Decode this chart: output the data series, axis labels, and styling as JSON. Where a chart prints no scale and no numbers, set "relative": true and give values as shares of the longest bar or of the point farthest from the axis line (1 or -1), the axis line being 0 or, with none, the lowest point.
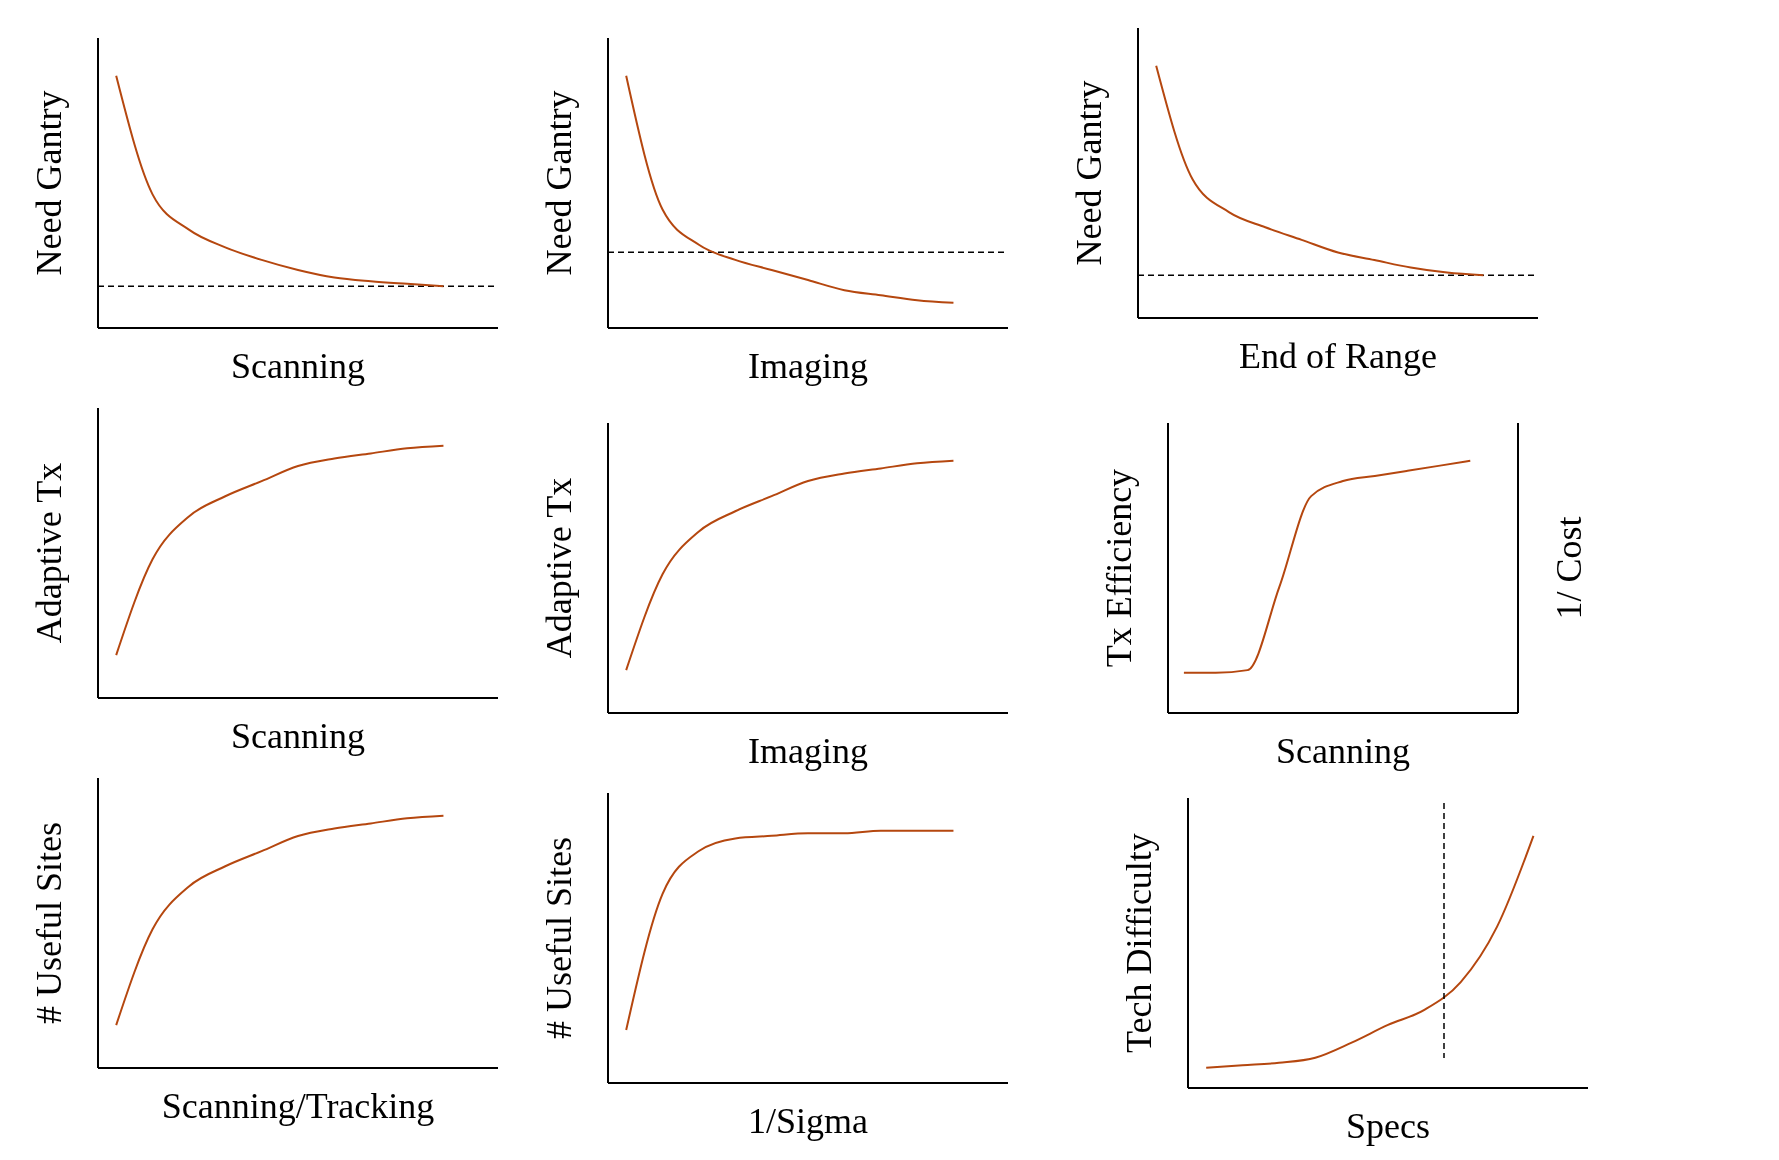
{
  "chart_data": [
    {
      "type": "line",
      "relative": true,
      "ylabel": "Need Gantry",
      "xlabel": "Scanning",
      "categories": [
        null,
        null,
        null,
        null,
        null,
        null,
        null,
        null,
        null,
        null,
        null
      ],
      "series": [
        {
          "color": "#b5470f",
          "values": [
            1,
            0.53,
            0.39,
            0.32,
            0.27,
            0.23,
            0.2,
            0.185,
            0.175,
            0.166,
            null
          ]
        }
      ],
      "ref_lines": [
        {
          "axis": "y",
          "value": 0.166,
          "line_style": "dashed",
          "color": "#000000"
        }
      ]
    },
    {
      "type": "line",
      "relative": true,
      "ylabel": "Need Gantry",
      "xlabel": "Imaging",
      "categories": [
        null,
        null,
        null,
        null,
        null,
        null,
        null,
        null,
        null,
        null,
        null
      ],
      "series": [
        {
          "color": "#b5470f",
          "values": [
            1,
            0.47,
            0.33,
            0.27,
            0.23,
            0.19,
            0.15,
            0.13,
            0.11,
            0.1,
            null
          ]
        }
      ],
      "ref_lines": [
        {
          "axis": "y",
          "value": 0.3,
          "line_style": "dashed",
          "color": "#000000"
        }
      ]
    },
    {
      "type": "line",
      "relative": true,
      "ylabel": "Need Gantry",
      "xlabel": "End of Range",
      "categories": [
        null,
        null,
        null,
        null,
        null,
        null,
        null,
        null,
        null,
        null,
        null
      ],
      "series": [
        {
          "color": "#b5470f",
          "values": [
            1,
            0.55,
            0.42,
            0.36,
            0.31,
            0.26,
            0.23,
            0.2,
            0.18,
            0.17,
            null
          ]
        }
      ],
      "ref_lines": [
        {
          "axis": "y",
          "value": 0.17,
          "line_style": "dashed",
          "color": "#000000"
        }
      ]
    },
    {
      "type": "line",
      "relative": true,
      "ylabel": "Adaptive Tx",
      "xlabel": "Scanning",
      "categories": [
        null,
        null,
        null,
        null,
        null,
        null,
        null,
        null,
        null,
        null,
        null
      ],
      "series": [
        {
          "color": "#b5470f",
          "values": [
            0.17,
            0.55,
            0.72,
            0.8,
            0.86,
            0.92,
            0.95,
            0.97,
            0.99,
            1,
            null
          ]
        }
      ]
    },
    {
      "type": "line",
      "relative": true,
      "ylabel": "Adaptive Tx",
      "xlabel": "Imaging",
      "categories": [
        null,
        null,
        null,
        null,
        null,
        null,
        null,
        null,
        null,
        null,
        null
      ],
      "series": [
        {
          "color": "#b5470f",
          "values": [
            0.17,
            0.55,
            0.72,
            0.8,
            0.86,
            0.92,
            0.95,
            0.97,
            0.99,
            1,
            null
          ]
        }
      ]
    },
    {
      "type": "line",
      "relative": true,
      "ylabel": "Tx Efficiency",
      "y2label": "1/ Cost",
      "xlabel": "Scanning",
      "categories": [
        null,
        null,
        null,
        null,
        null,
        null,
        null,
        null,
        null,
        null,
        null
      ],
      "series": [
        {
          "color": "#b5470f",
          "values": [
            0.16,
            0.16,
            0.17,
            0.5,
            0.86,
            0.92,
            0.94,
            0.96,
            0.98,
            1,
            null
          ]
        }
      ]
    },
    {
      "type": "line",
      "relative": true,
      "ylabel": "# Useful Sites",
      "xlabel": "Scanning/Tracking",
      "categories": [
        null,
        null,
        null,
        null,
        null,
        null,
        null,
        null,
        null,
        null,
        null
      ],
      "series": [
        {
          "color": "#b5470f",
          "values": [
            0.17,
            0.55,
            0.72,
            0.8,
            0.86,
            0.92,
            0.95,
            0.97,
            0.99,
            1,
            null
          ]
        }
      ]
    },
    {
      "type": "line",
      "relative": true,
      "ylabel": "# Useful Sites",
      "xlabel": "1/Sigma",
      "categories": [
        null,
        null,
        null,
        null,
        null,
        null,
        null,
        null,
        null,
        null,
        null
      ],
      "series": [
        {
          "color": "#b5470f",
          "values": [
            0.21,
            0.75,
            0.92,
            0.97,
            0.98,
            0.99,
            0.99,
            1,
            1,
            1,
            null
          ]
        }
      ]
    },
    {
      "type": "line",
      "relative": true,
      "ylabel": "Tech Difficulty",
      "xlabel": "Specs",
      "categories": [
        null,
        null,
        null,
        null,
        null,
        null,
        null,
        null,
        null,
        null,
        null
      ],
      "series": [
        {
          "color": "#b5470f",
          "values": [
            0.08,
            0.09,
            0.1,
            0.12,
            0.18,
            0.25,
            0.31,
            0.42,
            0.64,
            1,
            null
          ]
        }
      ]
    }
  ]
}
